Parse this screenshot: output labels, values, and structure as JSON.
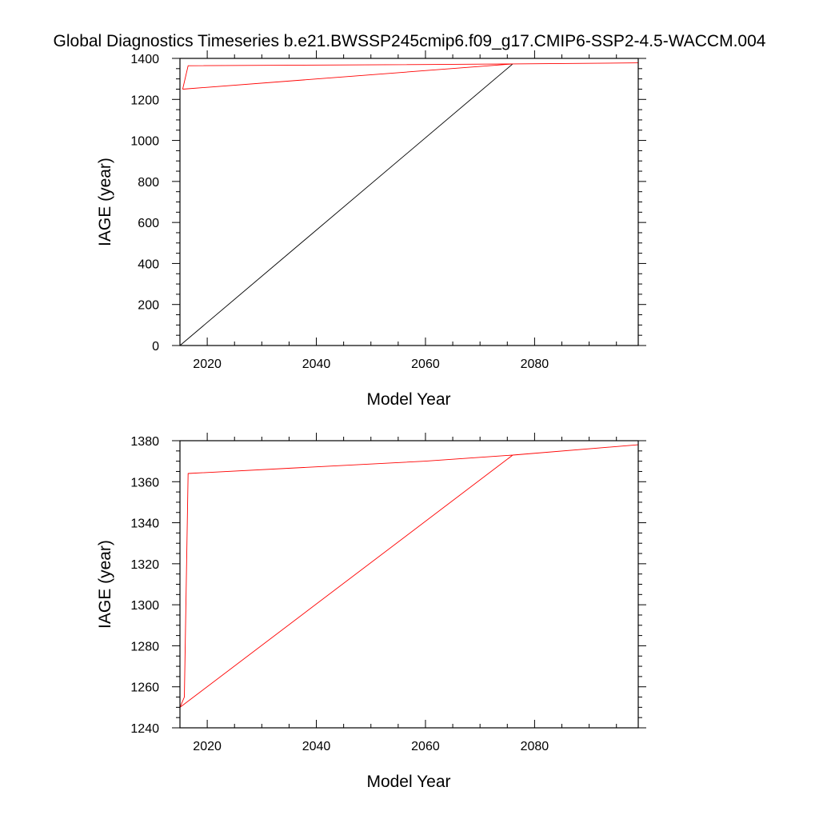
{
  "figure": {
    "title": "Global Diagnostics Timeseries b.e21.BWSSP245cmip6.f09_g17.CMIP6-SSP2-4.5-WACCM.004"
  },
  "chart_data": [
    {
      "type": "line",
      "xlabel": "Model Year",
      "ylabel": "IAGE (year)",
      "xlim": [
        2015,
        2099
      ],
      "ylim": [
        0,
        1400
      ],
      "x_ticks_major": [
        2020,
        2040,
        2060,
        2080
      ],
      "x_ticks_minor": [
        2025,
        2030,
        2035,
        2045,
        2050,
        2055,
        2065,
        2070,
        2075,
        2085,
        2090,
        2095
      ],
      "y_ticks_major": [
        0,
        200,
        400,
        600,
        800,
        1000,
        1200,
        1400
      ],
      "y_ticks_minor": [
        50,
        100,
        150,
        250,
        300,
        350,
        450,
        500,
        550,
        650,
        700,
        750,
        850,
        900,
        950,
        1050,
        1100,
        1150,
        1250,
        1300,
        1350
      ],
      "grid": false,
      "series": [
        {
          "color": "#000000",
          "points": [
            [
              2015,
              0
            ],
            [
              2076,
              1373
            ]
          ]
        },
        {
          "color": "#ff0000",
          "points": [
            [
              2015.5,
              1250
            ],
            [
              2016.5,
              1364
            ],
            [
              2060,
              1370
            ],
            [
              2076,
              1373
            ],
            [
              2099,
              1378
            ],
            [
              2076,
              1373
            ],
            [
              2015.5,
              1250
            ]
          ]
        }
      ]
    },
    {
      "type": "line",
      "xlabel": "Model Year",
      "ylabel": "IAGE (year)",
      "xlim": [
        2015,
        2099
      ],
      "ylim": [
        1240,
        1380
      ],
      "x_ticks_major": [
        2020,
        2040,
        2060,
        2080
      ],
      "x_ticks_minor": [
        2025,
        2030,
        2035,
        2045,
        2050,
        2055,
        2065,
        2070,
        2075,
        2085,
        2090,
        2095
      ],
      "y_ticks_major": [
        1240,
        1260,
        1280,
        1300,
        1320,
        1340,
        1360,
        1380
      ],
      "y_ticks_minor": [
        1245,
        1250,
        1255,
        1265,
        1270,
        1275,
        1285,
        1290,
        1295,
        1305,
        1310,
        1315,
        1325,
        1330,
        1335,
        1345,
        1350,
        1355,
        1365,
        1370,
        1375
      ],
      "grid": false,
      "series": [
        {
          "color": "#ff0000",
          "points": [
            [
              2015,
              1250
            ],
            [
              2015.8,
              1255
            ],
            [
              2016.5,
              1364
            ],
            [
              2060,
              1370
            ],
            [
              2076,
              1373
            ],
            [
              2099,
              1378
            ],
            [
              2076,
              1373
            ],
            [
              2015,
              1250
            ]
          ]
        }
      ]
    }
  ]
}
